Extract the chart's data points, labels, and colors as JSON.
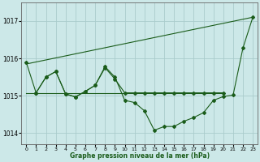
{
  "bg_color": "#cce8e8",
  "grid_color": "#aacccc",
  "line_color": "#1a5c1a",
  "xlabel": "Graphe pression niveau de la mer (hPa)",
  "ylim": [
    1013.7,
    1017.5
  ],
  "xlim": [
    -0.5,
    23.5
  ],
  "yticks": [
    1014,
    1015,
    1016,
    1017
  ],
  "xticks": [
    0,
    1,
    2,
    3,
    4,
    5,
    6,
    7,
    8,
    9,
    10,
    11,
    12,
    13,
    14,
    15,
    16,
    17,
    18,
    19,
    20,
    21,
    22,
    23
  ],
  "line_diagonal": {
    "x": [
      0,
      23
    ],
    "y": [
      1015.85,
      1017.1
    ],
    "marker": false
  },
  "line_flat": {
    "x": [
      0,
      20
    ],
    "y": [
      1015.08,
      1015.08
    ],
    "marker": false
  },
  "line_main": {
    "x": [
      0,
      1,
      2,
      3,
      4,
      5,
      6,
      7,
      8,
      9,
      10,
      11,
      12,
      13,
      14,
      15,
      16,
      17,
      18,
      19,
      20,
      21,
      22,
      23
    ],
    "y": [
      1015.9,
      1015.08,
      1015.5,
      1015.65,
      1015.05,
      1014.97,
      1015.12,
      1015.28,
      1015.78,
      1015.5,
      1014.88,
      1014.82,
      1014.6,
      1014.08,
      1014.18,
      1014.18,
      1014.32,
      1014.42,
      1014.55,
      1014.88,
      1014.98,
      1015.02,
      1016.28,
      1017.1
    ],
    "marker": true
  },
  "line_secondary": {
    "x": [
      1,
      2,
      3,
      4,
      5,
      6,
      7,
      8,
      9,
      10,
      11,
      12,
      13,
      14,
      15,
      16,
      17,
      18,
      19,
      20
    ],
    "y": [
      1015.08,
      1015.5,
      1015.65,
      1015.05,
      1014.97,
      1015.12,
      1015.28,
      1015.75,
      1015.45,
      1015.08,
      1015.08,
      1015.08,
      1015.08,
      1015.08,
      1015.08,
      1015.08,
      1015.08,
      1015.08,
      1015.08,
      1015.08
    ],
    "marker": true
  }
}
